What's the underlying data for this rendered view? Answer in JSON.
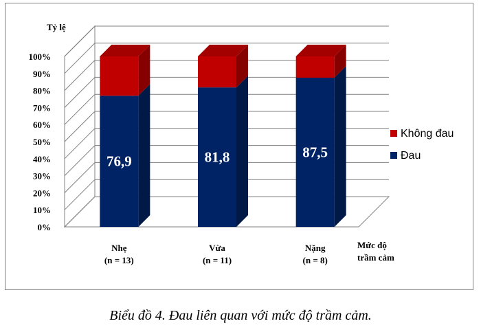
{
  "chart_data": {
    "type": "bar",
    "stacked": true,
    "three_d": true,
    "ylabel": "Tỷ lệ",
    "xlabel_lines": [
      "Mức độ",
      "trầm cảm"
    ],
    "ylim": [
      0,
      100
    ],
    "yticks": [
      "0%",
      "10%",
      "20%",
      "30%",
      "40%",
      "50%",
      "60%",
      "70%",
      "80%",
      "90%",
      "100%"
    ],
    "categories": [
      {
        "line1": "Nhẹ",
        "line2": "(n = 13)"
      },
      {
        "line1": "Vừa",
        "line2": "(n = 11)"
      },
      {
        "line1": "Nặng",
        "line2": "(n = 8)"
      }
    ],
    "series": [
      {
        "name": "Đau",
        "values": [
          76.9,
          81.8,
          87.5
        ],
        "labels": [
          "76,9",
          "81,8",
          "87,5"
        ],
        "color": "#002366"
      },
      {
        "name": "Không đau",
        "values": [
          23.1,
          18.2,
          12.5
        ],
        "color": "#c00000"
      }
    ],
    "legend_position": "right",
    "grid": true
  },
  "caption": "Biểu đồ 4. Đau liên quan với mức độ trầm cảm."
}
